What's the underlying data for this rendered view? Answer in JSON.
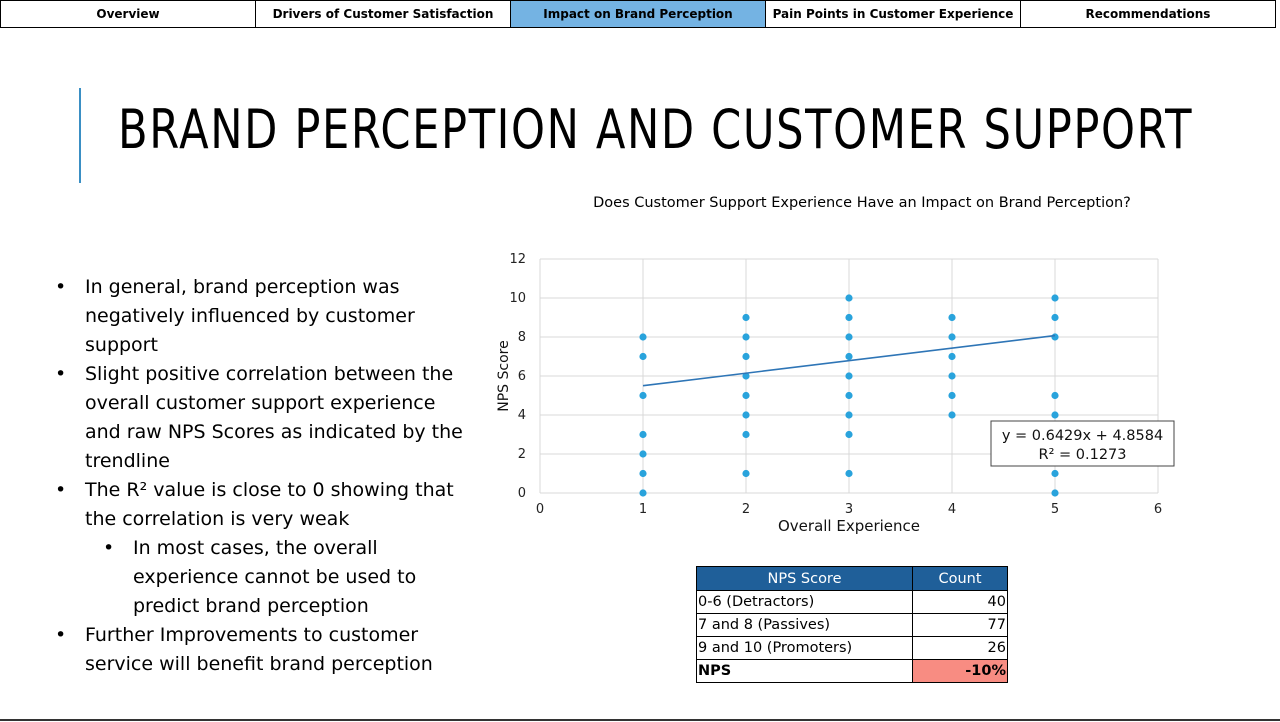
{
  "tabs": [
    {
      "label": "Overview"
    },
    {
      "label": "Drivers of Customer Satisfaction"
    },
    {
      "label": "Impact on Brand Perception"
    },
    {
      "label": "Pain Points in Customer Experience"
    },
    {
      "label": "Recommendations"
    }
  ],
  "active_tab": 2,
  "page_title": "BRAND PERCEPTION AND CUSTOMER SUPPORT",
  "bullets": [
    "In general, brand perception was negatively influenced by customer support",
    "Slight positive correlation between the overall customer support experience and raw NPS Scores as indicated by the trendline",
    "The R² value is close to 0 showing that the correlation is very weak",
    "In most cases, the overall experience cannot be used to predict brand perception",
    "Further Improvements to customer service will benefit brand perception"
  ],
  "chart_data": {
    "type": "scatter",
    "title": "Does Customer Support Experience Have an Impact on Brand Perception?",
    "xlabel": "Overall Experience",
    "ylabel": "NPS Score",
    "xlim": [
      0,
      6
    ],
    "ylim": [
      0,
      12
    ],
    "x_ticks": [
      0,
      1,
      2,
      3,
      4,
      5,
      6
    ],
    "y_ticks": [
      0,
      2,
      4,
      6,
      8,
      10,
      12
    ],
    "grid": true,
    "points": [
      {
        "x": 1,
        "y": 0
      },
      {
        "x": 1,
        "y": 1
      },
      {
        "x": 1,
        "y": 2
      },
      {
        "x": 1,
        "y": 3
      },
      {
        "x": 1,
        "y": 5
      },
      {
        "x": 1,
        "y": 7
      },
      {
        "x": 1,
        "y": 8
      },
      {
        "x": 2,
        "y": 1
      },
      {
        "x": 2,
        "y": 3
      },
      {
        "x": 2,
        "y": 4
      },
      {
        "x": 2,
        "y": 5
      },
      {
        "x": 2,
        "y": 6
      },
      {
        "x": 2,
        "y": 7
      },
      {
        "x": 2,
        "y": 8
      },
      {
        "x": 2,
        "y": 9
      },
      {
        "x": 3,
        "y": 1
      },
      {
        "x": 3,
        "y": 3
      },
      {
        "x": 3,
        "y": 4
      },
      {
        "x": 3,
        "y": 5
      },
      {
        "x": 3,
        "y": 6
      },
      {
        "x": 3,
        "y": 7
      },
      {
        "x": 3,
        "y": 8
      },
      {
        "x": 3,
        "y": 9
      },
      {
        "x": 3,
        "y": 10
      },
      {
        "x": 4,
        "y": 4
      },
      {
        "x": 4,
        "y": 5
      },
      {
        "x": 4,
        "y": 6
      },
      {
        "x": 4,
        "y": 7
      },
      {
        "x": 4,
        "y": 8
      },
      {
        "x": 4,
        "y": 9
      },
      {
        "x": 5,
        "y": 0
      },
      {
        "x": 5,
        "y": 1
      },
      {
        "x": 5,
        "y": 2
      },
      {
        "x": 5,
        "y": 4
      },
      {
        "x": 5,
        "y": 5
      },
      {
        "x": 5,
        "y": 8
      },
      {
        "x": 5,
        "y": 9
      },
      {
        "x": 5,
        "y": 10
      }
    ],
    "trendline": {
      "slope": 0.6429,
      "intercept": 4.8584,
      "x_range": [
        1,
        5
      ]
    },
    "trendline_equation": "y = 0.6429x + 4.8584",
    "r_squared_label": "R² = 0.1273",
    "point_color": "#29a3dc",
    "trendline_color": "#2e75b6"
  },
  "nps_table": {
    "headers": [
      "NPS Score",
      "Count"
    ],
    "rows": [
      {
        "label": "0-6 (Detractors)",
        "value": "40"
      },
      {
        "label": "7 and 8 (Passives)",
        "value": "77"
      },
      {
        "label": "9 and 10 (Promoters)",
        "value": "26"
      }
    ],
    "summary": {
      "label": "NPS",
      "value": "-10%"
    },
    "header_color": "#1f5f99",
    "highlight_color": "#f88c82"
  }
}
